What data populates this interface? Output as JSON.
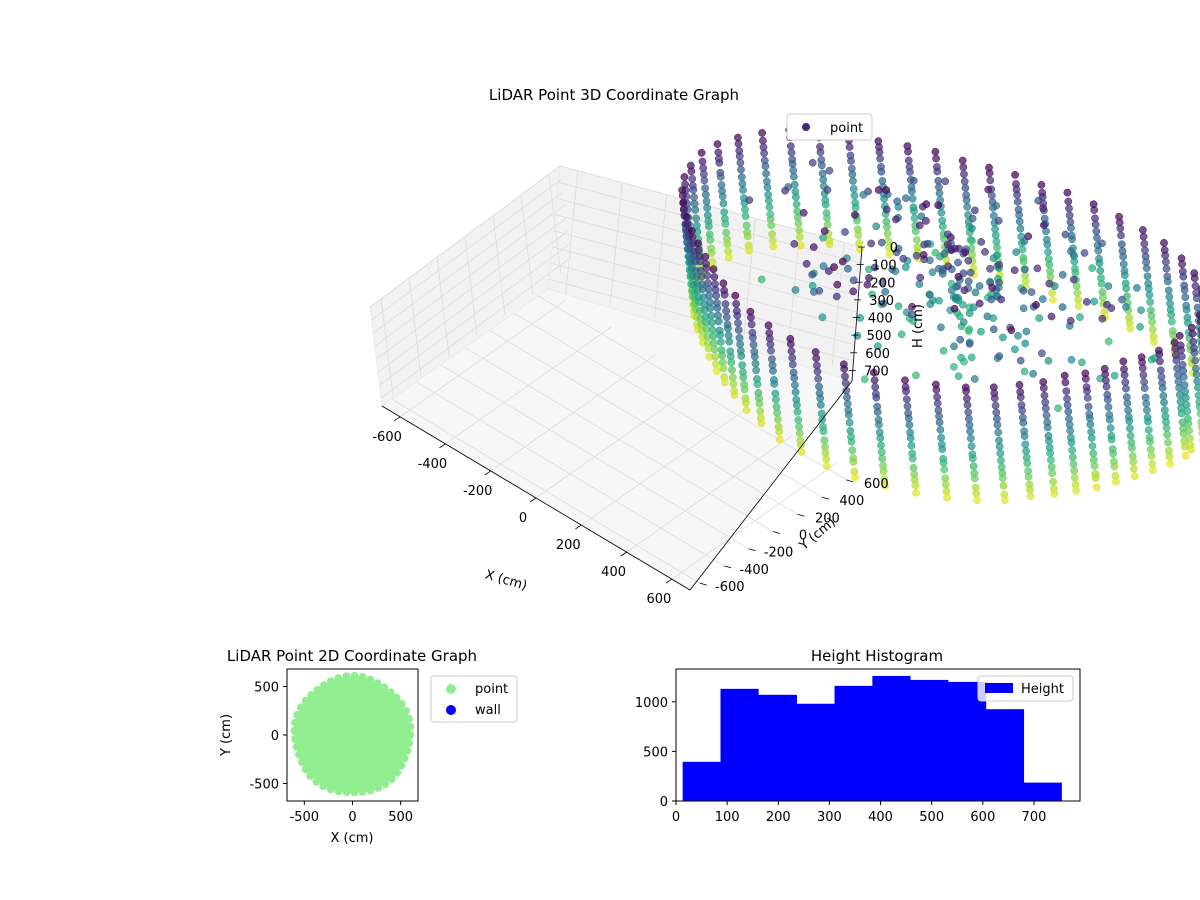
{
  "chart_data": [
    {
      "type": "scatter3d",
      "title": "LiDAR Point 3D Coordinate Graph",
      "xlabel": "X (cm)",
      "ylabel": "Y (cm)",
      "zlabel": "H (cm)",
      "xlim": [
        -680,
        680
      ],
      "ylim": [
        -680,
        680
      ],
      "zlim": [
        760,
        0
      ],
      "xticks": [
        "-600",
        "-400",
        "-200",
        "0",
        "200",
        "400",
        "600"
      ],
      "yticks": [
        "-600",
        "-400",
        "-200",
        "0",
        "200",
        "400",
        "600"
      ],
      "zticks": [
        "0",
        "100",
        "200",
        "300",
        "400",
        "500",
        "600",
        "700"
      ],
      "legend": [
        {
          "label": "point",
          "color": "#482878"
        }
      ],
      "legend_position": "upper right",
      "colormap": "viridis",
      "grid": true,
      "structure": "cylindrical wall of points, radius about 600 cm, heights 0 to 750 cm, with scattered interior points"
    },
    {
      "type": "scatter",
      "title": "LiDAR Point 2D Coordinate Graph",
      "xlabel": "X (cm)",
      "ylabel": "Y (cm)",
      "xlim": [
        -680,
        680
      ],
      "ylim": [
        -680,
        680
      ],
      "xticks": [
        "-500",
        "0",
        "500"
      ],
      "yticks": [
        "-500",
        "0",
        "500"
      ],
      "series": [
        {
          "name": "point",
          "color": "#90ee90",
          "shape": "filled disc",
          "center": [
            0,
            0
          ],
          "radius": 600
        },
        {
          "name": "wall",
          "color": "#0000ff",
          "points": []
        }
      ],
      "legend_position": "outside right"
    },
    {
      "type": "histogram",
      "title": "Height Histogram",
      "xlabel": "",
      "ylabel": "",
      "xlim": [
        0,
        790
      ],
      "ylim": [
        0,
        1330
      ],
      "xticks": [
        "0",
        "100",
        "200",
        "300",
        "400",
        "500",
        "600",
        "700"
      ],
      "yticks": [
        "0",
        "500",
        "1000"
      ],
      "bin_edges": [
        13,
        87,
        161,
        236,
        310,
        384,
        458,
        532,
        606,
        680,
        754
      ],
      "counts": [
        395,
        1130,
        1070,
        980,
        1160,
        1260,
        1220,
        1200,
        925,
        185
      ],
      "series": [
        {
          "name": "Height",
          "color": "#0000ff"
        }
      ],
      "legend_position": "upper right",
      "grid": false
    }
  ]
}
